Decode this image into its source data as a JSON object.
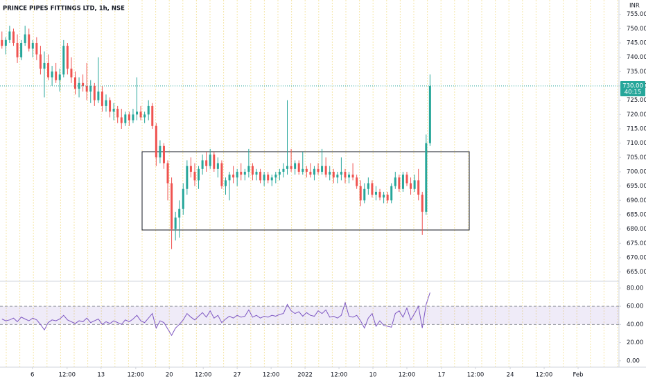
{
  "chart_data": [
    {
      "type": "candlestick",
      "title": "PRINCE PIPES FITTINGS LTD, 1h, NSE",
      "currency": "INR",
      "up_color": "#26a69a",
      "down_color": "#ef5350",
      "xlim": [
        -0.5,
        160
      ],
      "xticks": [
        {
          "value": 7.9,
          "label": "6"
        },
        {
          "value": 16.9,
          "label": "12:00"
        },
        {
          "value": 25.7,
          "label": "13"
        },
        {
          "value": 34.7,
          "label": "12:00"
        },
        {
          "value": 43.4,
          "label": "20"
        },
        {
          "value": 52.2,
          "label": "12:00"
        },
        {
          "value": 61,
          "label": "27"
        },
        {
          "value": 69.8,
          "label": "12:00"
        },
        {
          "value": 78.6,
          "label": "2022"
        },
        {
          "value": 87.4,
          "label": "12:00"
        },
        {
          "value": 96.2,
          "label": "10"
        },
        {
          "value": 105,
          "label": "12:00"
        },
        {
          "value": 114,
          "label": "17"
        },
        {
          "value": 122.8,
          "label": "12:00"
        },
        {
          "value": 131.8,
          "label": "24"
        },
        {
          "value": 140.6,
          "label": "12:00"
        },
        {
          "value": 149.4,
          "label": "Feb"
        }
      ],
      "ylim": [
        662,
        760
      ],
      "yticks": [
        {
          "value": 755,
          "label": "755.00"
        },
        {
          "value": 750,
          "label": "750.00"
        },
        {
          "value": 745,
          "label": "745.00"
        },
        {
          "value": 740,
          "label": "740.00"
        },
        {
          "value": 735,
          "label": "735.00"
        },
        {
          "value": 730,
          "label": "730.00"
        },
        {
          "value": 725,
          "label": "725.00"
        },
        {
          "value": 720,
          "label": "720.00"
        },
        {
          "value": 715,
          "label": "715.00"
        },
        {
          "value": 710,
          "label": "710.00"
        },
        {
          "value": 705,
          "label": "705.00"
        },
        {
          "value": 700,
          "label": "700.00"
        },
        {
          "value": 695,
          "label": "695.00"
        },
        {
          "value": 690,
          "label": "690.00"
        },
        {
          "value": 685,
          "label": "685.00"
        },
        {
          "value": 680,
          "label": "680.00"
        },
        {
          "value": 675,
          "label": "675.00"
        },
        {
          "value": 670,
          "label": "670.00"
        },
        {
          "value": 665,
          "label": "665.00"
        }
      ],
      "last_price": {
        "value": 730,
        "label": "730.00"
      },
      "countdown": "40:15",
      "candles": [
        [
          746,
          749,
          743,
          744
        ],
        [
          744,
          747,
          741,
          746
        ],
        [
          746,
          751,
          745,
          749
        ],
        [
          749,
          750,
          744,
          745
        ],
        [
          745,
          748,
          738,
          740
        ],
        [
          740,
          746,
          739,
          745
        ],
        [
          745,
          751,
          744,
          748
        ],
        [
          748,
          750,
          742,
          743
        ],
        [
          743,
          746,
          740,
          745
        ],
        [
          745,
          747,
          739,
          741
        ],
        [
          741,
          744,
          734,
          736
        ],
        [
          736,
          742,
          726,
          738
        ],
        [
          738,
          741,
          732,
          733
        ],
        [
          733,
          737,
          730,
          735
        ],
        [
          735,
          738,
          731,
          732
        ],
        [
          732,
          736,
          728,
          734
        ],
        [
          734,
          746,
          733,
          744
        ],
        [
          744,
          745,
          734,
          736
        ],
        [
          736,
          740,
          731,
          733
        ],
        [
          733,
          735,
          727,
          729
        ],
        [
          729,
          733,
          726,
          731
        ],
        [
          731,
          734,
          728,
          730
        ],
        [
          730,
          738,
          725,
          728
        ],
        [
          728,
          732,
          724,
          730
        ],
        [
          730,
          731,
          723,
          725
        ],
        [
          725,
          740,
          724,
          728
        ],
        [
          728,
          730,
          721,
          723
        ],
        [
          723,
          727,
          721,
          725
        ],
        [
          725,
          726,
          719,
          721
        ],
        [
          721,
          724,
          718,
          722
        ],
        [
          722,
          723,
          717,
          719
        ],
        [
          719,
          722,
          715,
          717
        ],
        [
          717,
          721,
          716,
          720
        ],
        [
          720,
          721,
          716,
          718
        ],
        [
          718,
          722,
          717,
          720
        ],
        [
          720,
          733,
          718,
          721
        ],
        [
          721,
          723,
          718,
          719
        ],
        [
          719,
          721,
          717,
          720
        ],
        [
          720,
          725,
          718,
          723
        ],
        [
          723,
          724,
          715,
          716
        ],
        [
          716,
          717,
          702,
          705
        ],
        [
          705,
          711,
          703,
          709
        ],
        [
          709,
          710,
          701,
          703
        ],
        [
          703,
          704,
          690,
          696
        ],
        [
          696,
          698,
          673,
          680
        ],
        [
          680,
          686,
          676,
          684
        ],
        [
          684,
          690,
          677,
          687
        ],
        [
          687,
          696,
          685,
          694
        ],
        [
          694,
          704,
          692,
          702
        ],
        [
          702,
          705,
          698,
          700
        ],
        [
          700,
          703,
          695,
          697
        ],
        [
          697,
          702,
          694,
          701
        ],
        [
          701,
          706,
          699,
          704
        ],
        [
          704,
          707,
          700,
          702
        ],
        [
          702,
          708,
          701,
          706
        ],
        [
          706,
          707,
          700,
          701
        ],
        [
          701,
          705,
          698,
          703
        ],
        [
          703,
          704,
          694,
          695
        ],
        [
          695,
          698,
          692,
          697
        ],
        [
          697,
          700,
          690,
          699
        ],
        [
          699,
          702,
          696,
          698
        ],
        [
          698,
          701,
          695,
          700
        ],
        [
          700,
          703,
          697,
          699
        ],
        [
          699,
          701,
          697,
          700
        ],
        [
          700,
          708,
          698,
          702
        ],
        [
          702,
          703,
          697,
          699
        ],
        [
          699,
          701,
          697,
          700
        ],
        [
          700,
          701,
          696,
          697
        ],
        [
          697,
          700,
          695,
          699
        ],
        [
          699,
          700,
          696,
          697
        ],
        [
          697,
          699,
          695,
          698
        ],
        [
          698,
          700,
          696,
          699
        ],
        [
          699,
          701,
          697,
          700
        ],
        [
          700,
          703,
          698,
          701
        ],
        [
          701,
          725,
          699,
          702
        ],
        [
          702,
          708,
          700,
          701
        ],
        [
          701,
          704,
          699,
          703
        ],
        [
          703,
          704,
          699,
          700
        ],
        [
          700,
          707,
          699,
          701
        ],
        [
          701,
          702,
          698,
          700
        ],
        [
          700,
          703,
          698,
          699
        ],
        [
          699,
          702,
          697,
          701
        ],
        [
          701,
          703,
          699,
          700
        ],
        [
          700,
          708,
          699,
          702
        ],
        [
          702,
          705,
          698,
          699
        ],
        [
          699,
          702,
          697,
          700
        ],
        [
          700,
          701,
          696,
          698
        ],
        [
          698,
          700,
          696,
          699
        ],
        [
          699,
          705,
          697,
          700
        ],
        [
          700,
          701,
          696,
          698
        ],
        [
          698,
          700,
          696,
          699
        ],
        [
          699,
          703,
          697,
          698
        ],
        [
          698,
          699,
          694,
          695
        ],
        [
          695,
          697,
          688,
          690
        ],
        [
          690,
          696,
          689,
          694
        ],
        [
          694,
          698,
          692,
          696
        ],
        [
          696,
          697,
          691,
          692
        ],
        [
          692,
          695,
          690,
          693
        ],
        [
          693,
          694,
          690,
          691
        ],
        [
          691,
          693,
          689,
          692
        ],
        [
          692,
          693,
          689,
          690
        ],
        [
          690,
          696,
          689,
          695
        ],
        [
          695,
          700,
          694,
          698
        ],
        [
          698,
          699,
          693,
          694
        ],
        [
          694,
          700,
          693,
          699
        ],
        [
          699,
          700,
          695,
          696
        ],
        [
          696,
          698,
          692,
          694
        ],
        [
          694,
          699,
          693,
          697
        ],
        [
          697,
          701,
          690,
          692
        ],
        [
          692,
          693,
          678,
          686
        ],
        [
          686,
          713,
          685,
          710
        ],
        [
          710,
          734,
          709,
          730
        ]
      ]
    },
    {
      "type": "line",
      "color": "#7e57c2",
      "band": [
        40,
        60
      ],
      "band_color": "rgba(126,87,194,0.12)",
      "xlim": [
        -0.5,
        160
      ],
      "ylim": [
        -7,
        86
      ],
      "yticks": [
        {
          "value": 80,
          "label": "80.00"
        },
        {
          "value": 60,
          "label": "60.00"
        },
        {
          "value": 40,
          "label": "40.00"
        },
        {
          "value": 20,
          "label": "20.00"
        },
        {
          "value": 0,
          "label": "0.00"
        }
      ],
      "values": [
        46,
        44,
        45,
        47,
        43,
        48,
        46,
        44,
        47,
        45,
        40,
        34,
        42,
        45,
        44,
        46,
        50,
        45,
        43,
        41,
        44,
        43,
        47,
        42,
        44,
        46,
        40,
        43,
        41,
        44,
        42,
        40,
        45,
        43,
        46,
        50,
        44,
        42,
        47,
        52,
        36,
        44,
        42,
        35,
        28,
        36,
        40,
        45,
        52,
        48,
        45,
        49,
        53,
        48,
        55,
        47,
        50,
        42,
        46,
        49,
        47,
        50,
        48,
        49,
        56,
        48,
        50,
        47,
        49,
        48,
        50,
        49,
        51,
        52,
        62,
        55,
        52,
        54,
        49,
        53,
        50,
        49,
        55,
        52,
        56,
        48,
        49,
        47,
        50,
        64,
        49,
        48,
        50,
        44,
        36,
        47,
        52,
        38,
        44,
        39,
        38,
        37,
        52,
        55,
        48,
        58,
        45,
        52,
        60,
        36,
        62,
        75
      ]
    }
  ]
}
